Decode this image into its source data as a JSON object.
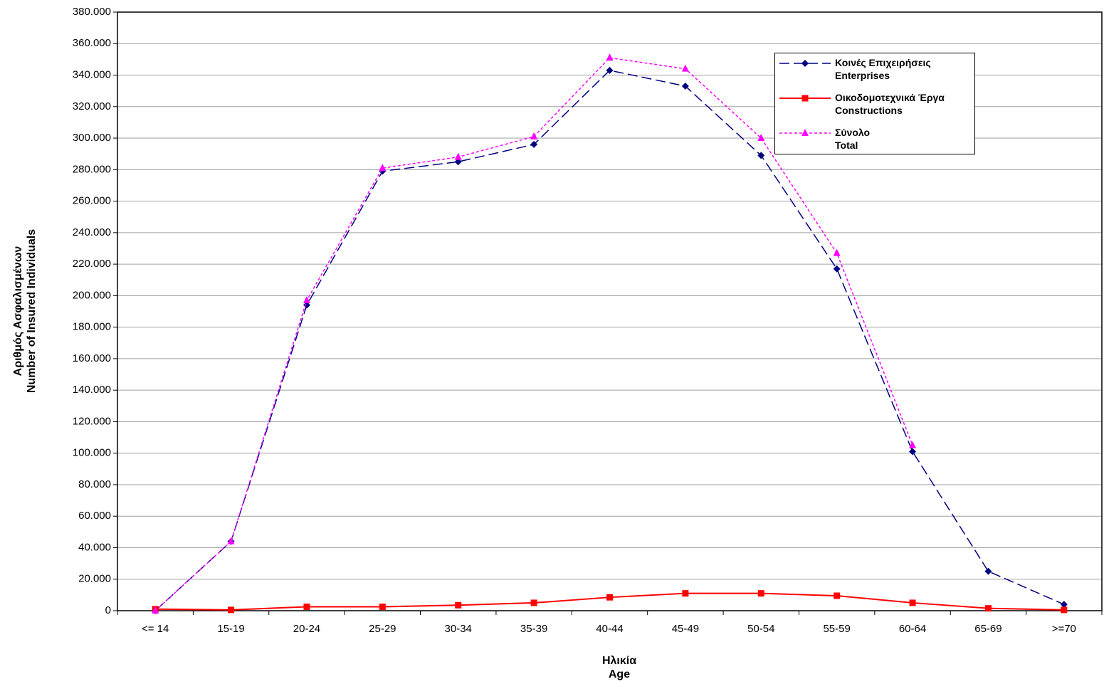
{
  "chart_data": {
    "type": "line",
    "x_label": "Ηλικία\nAge",
    "y_label": "Αριθμός Ασφαλισμένων\nNumber of Insured Individuals",
    "categories": [
      "<= 14",
      "15-19",
      "20-24",
      "25-29",
      "30-34",
      "35-39",
      "40-44",
      "45-49",
      "50-54",
      "55-59",
      "60-64",
      "65-69",
      ">=70"
    ],
    "series": [
      {
        "name": "Κοινές Επιχειρήσεις\nEnterprises",
        "color": "#000080",
        "line_style": "dashed",
        "marker": "diamond",
        "values": [
          0,
          44000,
          194000,
          279000,
          285000,
          296000,
          343000,
          333000,
          289000,
          217000,
          101000,
          25000,
          4000
        ]
      },
      {
        "name": "Οικοδομοτεχνικά Έργα\nConstructions",
        "color": "#ff0000",
        "line_style": "solid",
        "marker": "square",
        "values": [
          1000,
          500,
          2500,
          2500,
          3500,
          5000,
          8500,
          11000,
          11000,
          9500,
          5000,
          1500,
          500
        ]
      },
      {
        "name": "Σύνολο\nTotal",
        "color": "#ff00ff",
        "line_style": "dotted",
        "marker": "triangle",
        "values": [
          0,
          44000,
          197000,
          281000,
          288000,
          301000,
          351000,
          344000,
          300000,
          227000,
          105000,
          null,
          null
        ]
      }
    ],
    "ylim": [
      0,
      380000
    ],
    "yticks": [
      0,
      {
        "value": 20000,
        "label": "20.000"
      },
      {
        "value": 40000,
        "label": "40.000"
      },
      {
        "value": 60000,
        "label": "60.000"
      },
      {
        "value": 80000,
        "label": "80.000"
      },
      {
        "value": 100000,
        "label": "100.000"
      },
      {
        "value": 120000,
        "label": "120.000"
      },
      {
        "value": 140000,
        "label": "140.000"
      },
      {
        "value": 160000,
        "label": "160.000"
      },
      {
        "value": 180000,
        "label": "180.000"
      },
      {
        "value": 200000,
        "label": "200.000"
      },
      {
        "value": 220000,
        "label": "220.000"
      },
      {
        "value": 240000,
        "label": "240.000"
      },
      {
        "value": 260000,
        "label": "260.000"
      },
      {
        "value": 280000,
        "label": "280.000"
      },
      {
        "value": 300000,
        "label": "300.000"
      },
      {
        "value": 320000,
        "label": "320.000"
      },
      {
        "value": 340000,
        "label": "340.000"
      },
      {
        "value": 360000,
        "label": "360.000"
      },
      {
        "value": 380000,
        "label": "380.000"
      }
    ],
    "grid": true,
    "legend": "upper right"
  }
}
